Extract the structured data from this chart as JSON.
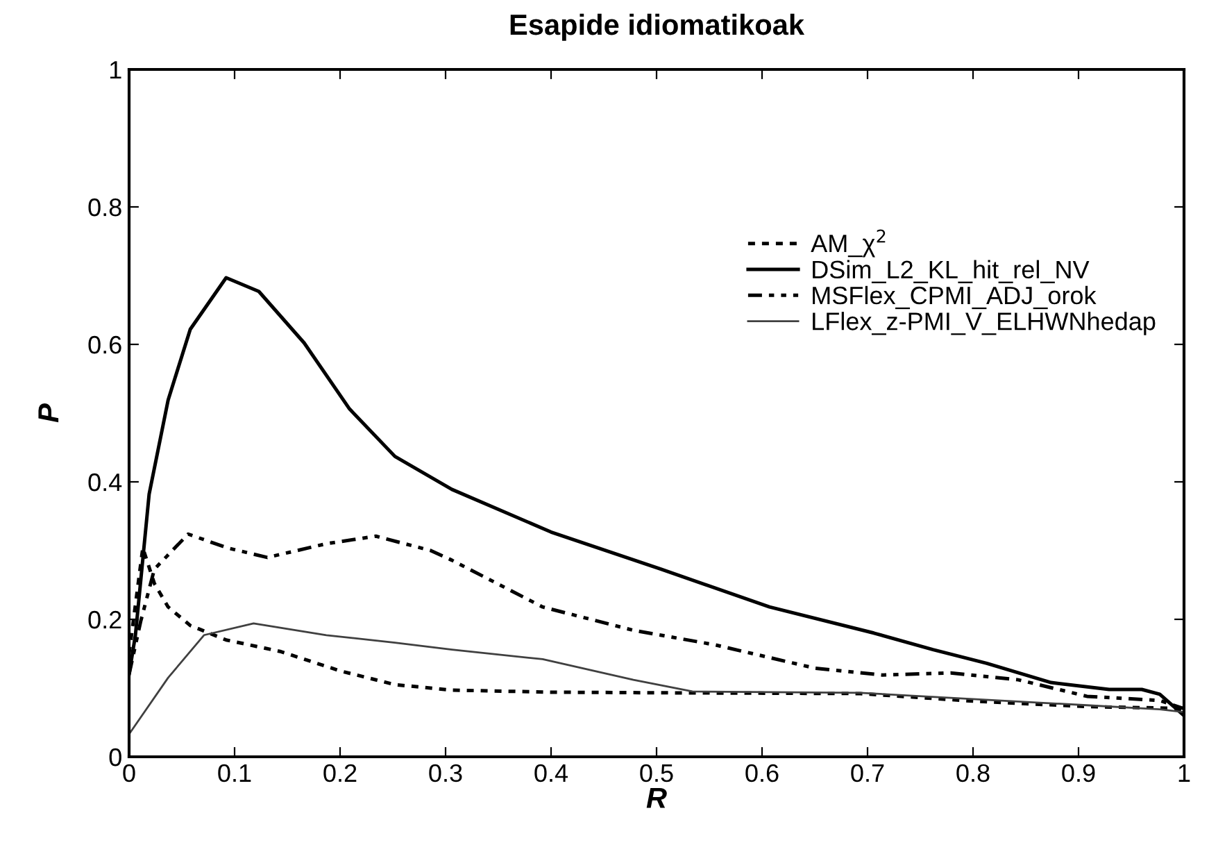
{
  "chart_data": {
    "type": "line",
    "title": "Esapide idiomatikoak",
    "xlabel": "R",
    "ylabel": "P",
    "xlim": [
      0,
      1
    ],
    "ylim": [
      0,
      1
    ],
    "xticks": [
      0,
      0.1,
      0.2,
      0.3,
      0.4,
      0.5,
      0.6,
      0.7,
      0.8,
      0.9,
      1
    ],
    "yticks": [
      0,
      0.2,
      0.4,
      0.6,
      0.8,
      1
    ],
    "grid": false,
    "legend": "top right",
    "marker": "none",
    "series": [
      {
        "name": "AM_χ$^{2}$",
        "color": "#000000",
        "line_style": "dotted",
        "x": [
          0,
          0.013,
          0.024,
          0.037,
          0.058,
          0.092,
          0.144,
          0.2,
          0.252,
          0.306,
          0.4,
          0.521,
          0.693,
          0.8,
          0.908,
          0.977,
          1
        ],
        "values": [
          0.15,
          0.304,
          0.252,
          0.218,
          0.191,
          0.17,
          0.153,
          0.125,
          0.105,
          0.097,
          0.094,
          0.093,
          0.092,
          0.081,
          0.073,
          0.071,
          0.07
        ]
      },
      {
        "name": "DSim_L2_KL_hit_rel_NV",
        "color": "#000000",
        "line_style": "solid",
        "x": [
          0,
          0.006,
          0.019,
          0.037,
          0.058,
          0.092,
          0.123,
          0.166,
          0.209,
          0.252,
          0.306,
          0.4,
          0.504,
          0.607,
          0.706,
          0.762,
          0.813,
          0.874,
          0.929,
          0.96,
          0.977,
          1
        ],
        "values": [
          0.12,
          0.177,
          0.382,
          0.519,
          0.622,
          0.697,
          0.677,
          0.602,
          0.506,
          0.437,
          0.389,
          0.327,
          0.273,
          0.218,
          0.18,
          0.156,
          0.136,
          0.108,
          0.098,
          0.098,
          0.091,
          0.06
        ]
      },
      {
        "name": "MSFlex_CPMI_ADJ_orok",
        "color": "#000000",
        "line_style": "dashed",
        "x": [
          0,
          0.011,
          0.024,
          0.056,
          0.093,
          0.131,
          0.187,
          0.234,
          0.286,
          0.306,
          0.392,
          0.478,
          0.555,
          0.65,
          0.714,
          0.779,
          0.843,
          0.908,
          0.977,
          1
        ],
        "values": [
          0.12,
          0.197,
          0.273,
          0.324,
          0.304,
          0.29,
          0.31,
          0.321,
          0.3,
          0.286,
          0.218,
          0.184,
          0.163,
          0.129,
          0.119,
          0.122,
          0.112,
          0.088,
          0.082,
          0.07
        ]
      },
      {
        "name": "LFlex_z-PMI_V_ELHWNhedap",
        "color": "#404040",
        "line_style": "solid",
        "x": [
          0,
          0.037,
          0.071,
          0.118,
          0.187,
          0.252,
          0.306,
          0.392,
          0.478,
          0.534,
          0.693,
          0.8,
          0.908,
          0.977,
          1
        ],
        "values": [
          0.033,
          0.115,
          0.177,
          0.194,
          0.177,
          0.166,
          0.156,
          0.142,
          0.112,
          0.095,
          0.093,
          0.084,
          0.075,
          0.069,
          0.065
        ]
      }
    ]
  }
}
